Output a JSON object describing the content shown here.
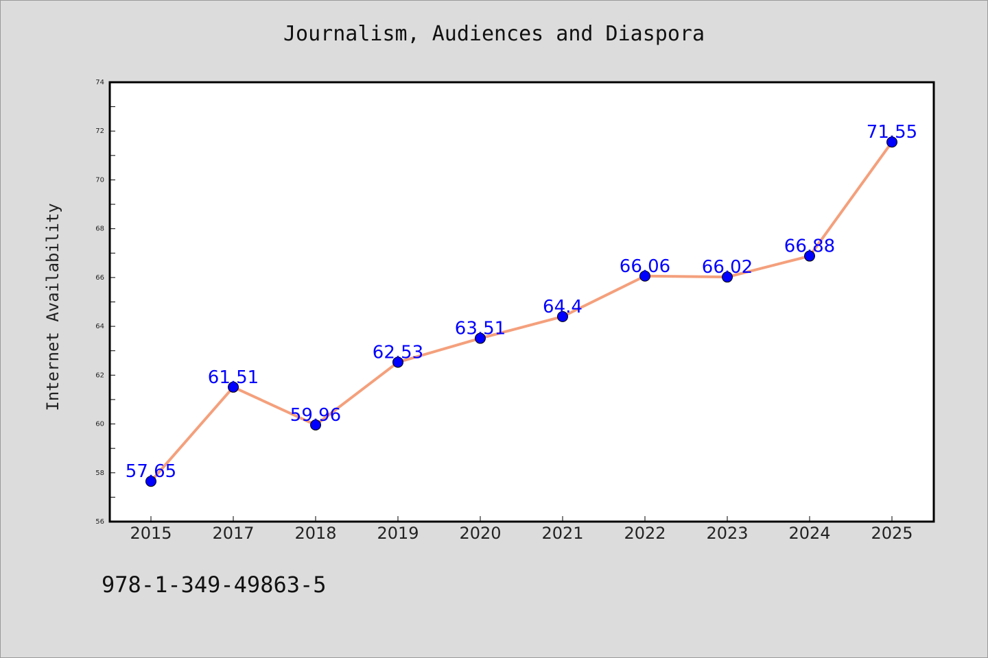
{
  "chart_data": {
    "type": "line",
    "title": "Journalism, Audiences and Diaspora",
    "xlabel": "",
    "ylabel": "Internet Availability",
    "categories": [
      "2015",
      "2017",
      "2018",
      "2019",
      "2020",
      "2021",
      "2022",
      "2023",
      "2024",
      "2025"
    ],
    "series": [
      {
        "values": [
          57.65,
          61.51,
          59.96,
          62.53,
          63.51,
          64.4,
          66.06,
          66.02,
          66.88,
          71.55
        ],
        "data_labels": [
          "57.65",
          "61.51",
          "59.96",
          "62.53",
          "63.51",
          "64.4",
          "66.06",
          "66.02",
          "66.88",
          "71.55"
        ],
        "line_color": "#f4a07c",
        "marker_color": "#0000ff"
      }
    ],
    "ylim": [
      56,
      74
    ],
    "y_ticks": [
      "56",
      "58",
      "60",
      "62",
      "64",
      "66",
      "68",
      "70",
      "72",
      "74"
    ],
    "grid": false,
    "legend": "none"
  },
  "footer": {
    "code": "978-1-349-49863-5"
  },
  "colors": {
    "background": "#dcdcdc",
    "plot_area": "#ffffff",
    "label_color": "#0000ff"
  }
}
